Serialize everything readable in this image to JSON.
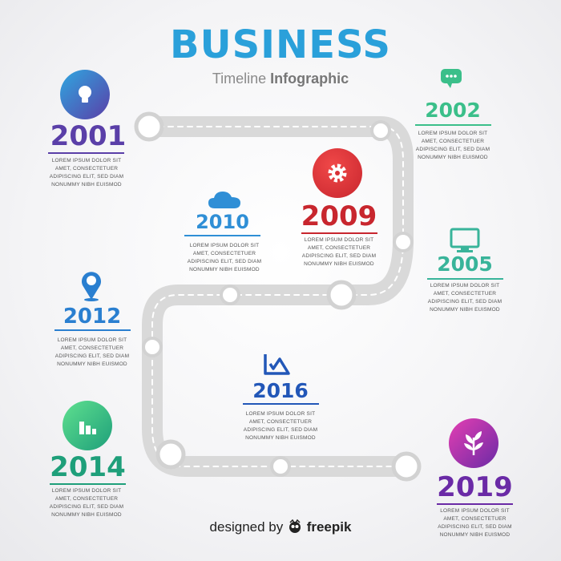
{
  "header": {
    "title": "BUSINESS",
    "subtitle_a": "Timeline ",
    "subtitle_b": "Infographic"
  },
  "desc_text": "LOREM IPSUM DOLOR SIT AMET, CONSECTETUER ADIPISCING ELIT, SED DIAM NONUMMY NIBH EUISMOD",
  "milestones": [
    {
      "year": "2001",
      "icon": "lightbulb-icon",
      "color": "#5a3fa8",
      "desc": "LOREM IPSUM DOLOR SIT AMET, CONSECTETUER ADIPISCING ELIT, SED DIAM NONUMMY NIBH EUISMOD"
    },
    {
      "year": "2002",
      "icon": "chat-bubble-icon",
      "color": "#3bbf8a",
      "desc": "LOREM IPSUM DOLOR SIT AMET, CONSECTETUER ADIPISCING ELIT, SED DIAM NONUMMY NIBH EUISMOD"
    },
    {
      "year": "2009",
      "icon": "gear-icon",
      "color": "#c8262e",
      "desc": "LOREM IPSUM DOLOR SIT AMET, CONSECTETUER ADIPISCING ELIT, SED DIAM NONUMMY NIBH EUISMOD"
    },
    {
      "year": "2010",
      "icon": "cloud-icon",
      "color": "#2f8fd6",
      "desc": "LOREM IPSUM DOLOR SIT AMET, CONSECTETUER ADIPISCING ELIT, SED DIAM NONUMMY NIBH EUISMOD"
    },
    {
      "year": "2005",
      "icon": "monitor-icon",
      "color": "#39b49a",
      "desc": "LOREM IPSUM DOLOR SIT AMET, CONSECTETUER ADIPISCING ELIT, SED DIAM NONUMMY NIBH EUISMOD"
    },
    {
      "year": "2012",
      "icon": "map-pin-icon",
      "color": "#2a7fd0",
      "desc": "LOREM IPSUM DOLOR SIT AMET, CONSECTETUER ADIPISCING ELIT, SED DIAM NONUMMY NIBH EUISMOD"
    },
    {
      "year": "2016",
      "icon": "chart-logo-icon",
      "color": "#2257b8",
      "desc": "LOREM IPSUM DOLOR SIT AMET, CONSECTETUER ADIPISCING ELIT, SED DIAM NONUMMY NIBH EUISMOD"
    },
    {
      "year": "2014",
      "icon": "bar-chart-icon",
      "color": "#1e9f7a",
      "desc": "LOREM IPSUM DOLOR SIT AMET, CONSECTETUER ADIPISCING ELIT, SED DIAM NONUMMY NIBH EUISMOD"
    },
    {
      "year": "2019",
      "icon": "leaf-icon",
      "color": "#6a2aa6",
      "desc": "LOREM IPSUM DOLOR SIT AMET, CONSECTETUER ADIPISCING ELIT, SED DIAM NONUMMY NIBH EUISMOD"
    }
  ],
  "credit": {
    "prefix": "designed by ",
    "brand": "freepik"
  }
}
